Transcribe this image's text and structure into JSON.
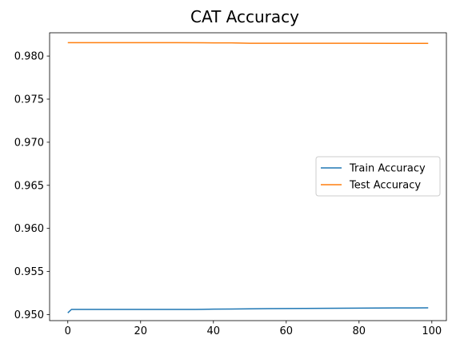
{
  "chart_data": {
    "type": "line",
    "title": "CAT Accuracy",
    "xlabel": "",
    "ylabel": "",
    "xlim": [
      -5,
      104
    ],
    "ylim": [
      0.9493,
      0.9827
    ],
    "xticks": [
      0,
      20,
      40,
      60,
      80,
      100
    ],
    "yticks": [
      0.95,
      0.955,
      0.96,
      0.965,
      0.97,
      0.975,
      0.98
    ],
    "ytick_labels": [
      "0.950",
      "0.955",
      "0.960",
      "0.965",
      "0.970",
      "0.975",
      "0.980"
    ],
    "grid": false,
    "legend_position": "center-right",
    "series": [
      {
        "name": "Train Accuracy",
        "color": "#1f77b4",
        "x": [
          0,
          1,
          5,
          10,
          20,
          30,
          35,
          40,
          45,
          50,
          55,
          60,
          65,
          70,
          75,
          80,
          85,
          90,
          95,
          99
        ],
        "y": [
          0.9502,
          0.9506,
          0.9506,
          0.9506,
          0.9506,
          0.9506,
          0.9506,
          0.95063,
          0.95065,
          0.95067,
          0.95069,
          0.9507,
          0.95071,
          0.95073,
          0.95074,
          0.95075,
          0.95076,
          0.95077,
          0.95077,
          0.95078
        ]
      },
      {
        "name": "Test Accuracy",
        "color": "#ff7f0e",
        "x": [
          0,
          10,
          20,
          30,
          40,
          45,
          50,
          60,
          70,
          80,
          90,
          99
        ],
        "y": [
          0.98155,
          0.98155,
          0.98155,
          0.98155,
          0.98153,
          0.98153,
          0.98148,
          0.98148,
          0.98148,
          0.98148,
          0.98147,
          0.98147
        ]
      }
    ]
  }
}
